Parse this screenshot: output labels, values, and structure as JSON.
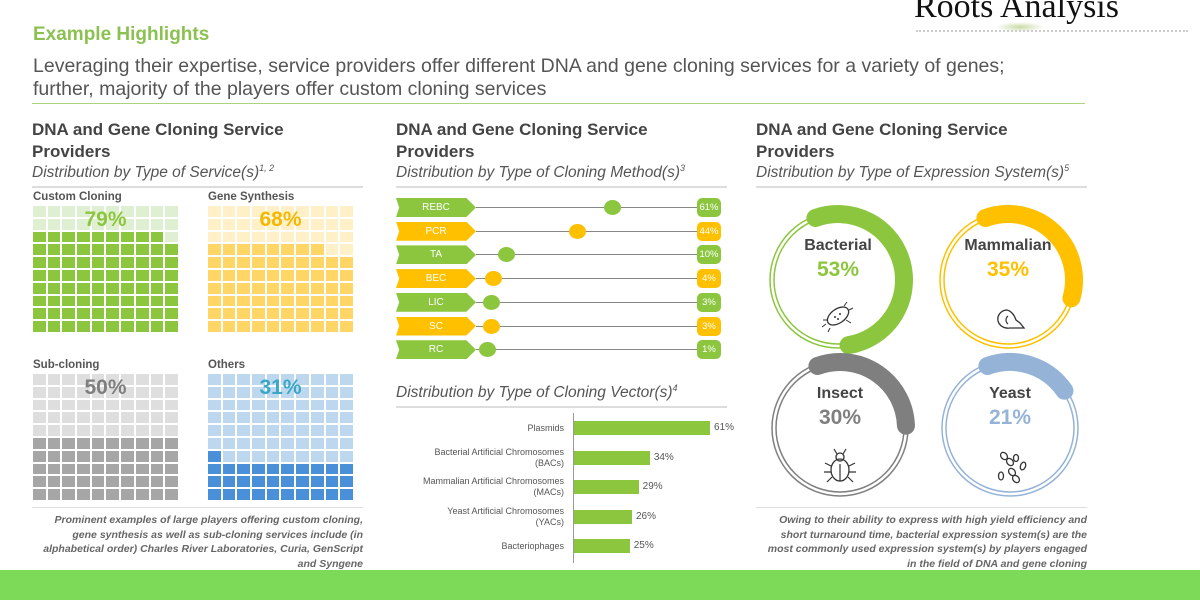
{
  "logo": {
    "text": "Roots Analysis"
  },
  "header": {
    "title": "Example Highlights",
    "subtitle_line1": "Leveraging their expertise, service providers offer different DNA and gene cloning services for a variety of genes;",
    "subtitle_line2": "further, majority of the players offer custom cloning services"
  },
  "panel_services": {
    "title": "DNA and Gene Cloning Service Providers",
    "subtitle": "Distribution by Type of Service(s)",
    "sup": "1, 2",
    "items": [
      {
        "label": "Custom Cloning",
        "value": 79,
        "display": "79%",
        "color": "#8cc63f",
        "light": "#dff0d2",
        "text_color": "#8cc63f"
      },
      {
        "label": "Gene Synthesis",
        "value": 68,
        "display": "68%",
        "color": "#ffd666",
        "light": "#fff0c8",
        "text_color": "#f5b800"
      },
      {
        "label": "Sub-cloning",
        "value": 50,
        "display": "50%",
        "color": "#a6a6a6",
        "light": "#dedede",
        "text_color": "#7f7f7f"
      },
      {
        "label": "Others",
        "value": 31,
        "display": "31%",
        "color": "#4a90d9",
        "light": "#bdd7ee",
        "text_color": "#3aa6c8"
      }
    ],
    "note": "Prominent examples of large players offering custom cloning, gene synthesis  as well as sub-cloning services include (in alphabetical order) Charles River Laboratories, Curia, GenScript  and Syngene"
  },
  "panel_methods": {
    "title": "DNA and Gene Cloning Service Providers",
    "subtitle": "Distribution by Type of Cloning Method(s)",
    "sup": "3",
    "items": [
      {
        "label": "REBC",
        "value": 61,
        "display": "61%",
        "color": "#8cc63f"
      },
      {
        "label": "PCR",
        "value": 44,
        "display": "44%",
        "color": "#ffc000"
      },
      {
        "label": "TA",
        "value": 10,
        "display": "10%",
        "color": "#8cc63f"
      },
      {
        "label": "BEC",
        "value": 4,
        "display": "4%",
        "color": "#ffc000"
      },
      {
        "label": "LIC",
        "value": 3,
        "display": "3%",
        "color": "#8cc63f"
      },
      {
        "label": "SC",
        "value": 3,
        "display": "3%",
        "color": "#ffc000"
      },
      {
        "label": "RC",
        "value": 1,
        "display": "1%",
        "color": "#8cc63f"
      }
    ]
  },
  "chart_data": {
    "type": "bar",
    "title": "Distribution by Type of Cloning Vector(s)",
    "sup": "4",
    "categories": [
      "Plasmids",
      "Bacterial Artificial Chromosomes (BACs)",
      "Mammalian  Artificial Chromosomes (MACs)",
      "Yeast Artificial Chromosomes (YACs)",
      "Bacteriophages"
    ],
    "category_lines": [
      [
        "Plasmids"
      ],
      [
        "Bacterial Artificial Chromosomes",
        "(BACs)"
      ],
      [
        "Mammalian  Artificial Chromosomes",
        "(MACs)"
      ],
      [
        "Yeast Artificial Chromosomes",
        "(YACs)"
      ],
      [
        "Bacteriophages"
      ]
    ],
    "values": [
      61,
      34,
      29,
      26,
      25
    ],
    "labels": [
      "61%",
      "34%",
      "29%",
      "26%",
      "25%"
    ],
    "orientation": "horizontal",
    "color": "#8cc63f",
    "grid": false
  },
  "panel_expression": {
    "title": "DNA and Gene Cloning Service Providers",
    "subtitle": "Distribution by Type of Expression System(s)",
    "sup": "5",
    "items": [
      {
        "label": "Bacterial",
        "value": 53,
        "display": "53%",
        "color": "#8cc63f",
        "icon": "bacterium-icon"
      },
      {
        "label": "Mammalian",
        "value": 35,
        "display": "35%",
        "color": "#ffc000",
        "icon": "mouse-icon"
      },
      {
        "label": "Insect",
        "value": 30,
        "display": "30%",
        "color": "#7f7f7f",
        "icon": "beetle-icon"
      },
      {
        "label": "Yeast",
        "value": 21,
        "display": "21%",
        "color": "#95b3d7",
        "icon": "yeast-icon"
      }
    ],
    "note": "Owing to their ability to express  with high yield efficiency and short turnaround time, bacterial expression  system(s) are the most  commonly used expression  system(s)  by players  engaged  in the field of DNA and gene cloning"
  }
}
